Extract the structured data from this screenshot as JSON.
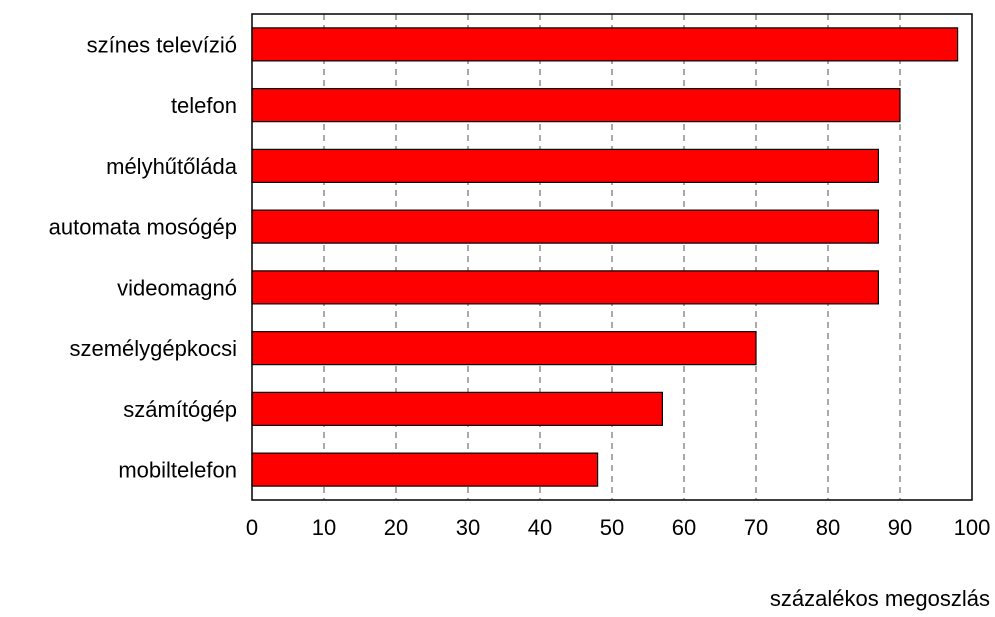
{
  "chart_data": {
    "type": "bar",
    "orientation": "horizontal",
    "categories": [
      "színes televízió",
      "telefon",
      "mélyhűtőláda",
      "automata mosógép",
      "videomagnó",
      "személygépkocsi",
      "számítógép",
      "mobiltelefon"
    ],
    "values": [
      98,
      90,
      87,
      87,
      87,
      70,
      57,
      48
    ],
    "xlabel": "százalékos megoszlás",
    "xlim": [
      0,
      100
    ],
    "xticks": [
      0,
      10,
      20,
      30,
      40,
      50,
      60,
      70,
      80,
      90,
      100
    ],
    "grid": "vertical dashed",
    "legend": "none",
    "colors": {
      "bar_fill": "#ff0000",
      "bar_stroke": "#000000",
      "grid": "#555555",
      "frame": "#000000"
    }
  }
}
